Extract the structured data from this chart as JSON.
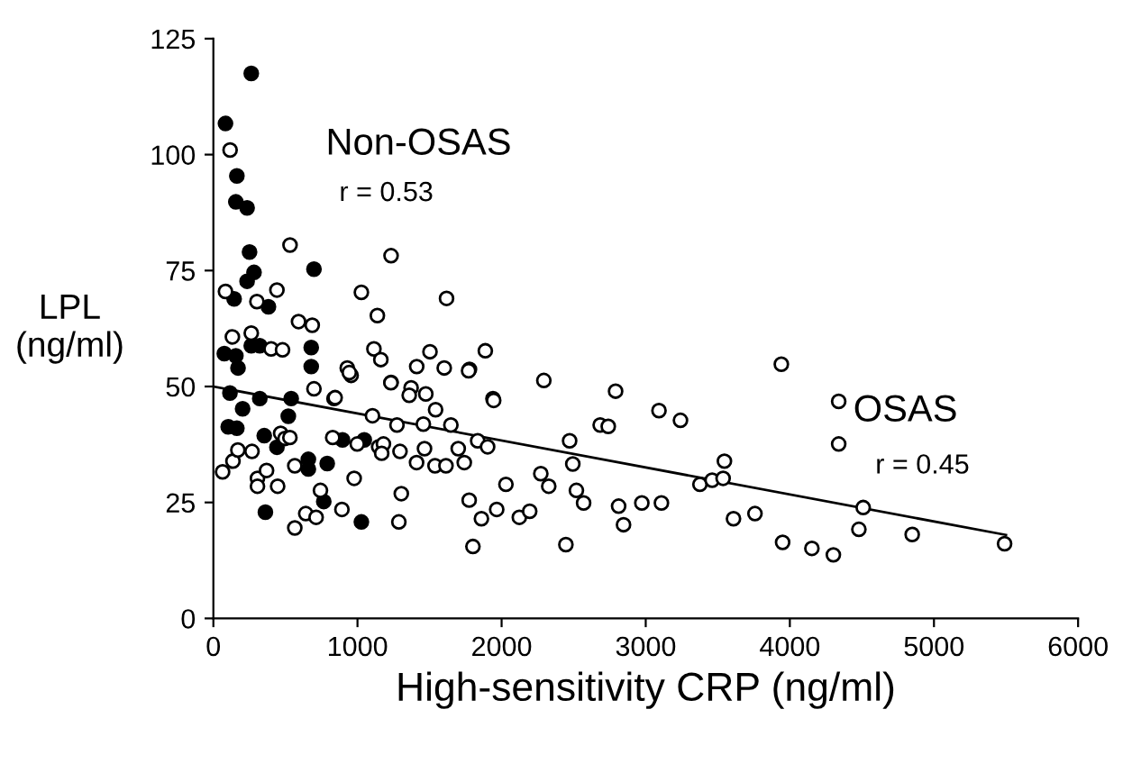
{
  "chart_data": {
    "type": "scatter",
    "xlabel": "High-sensitivity CRP (ng/ml)",
    "ylabel": "LPL (ng/ml)",
    "xlim": [
      0,
      6000
    ],
    "ylim": [
      0,
      125
    ],
    "xticks": [
      0,
      1000,
      2000,
      3000,
      4000,
      5000,
      6000
    ],
    "yticks": [
      0,
      25,
      50,
      75,
      100,
      125
    ],
    "marker": "circle",
    "grid": false,
    "legend": false,
    "annotations": [
      "r = 0.53",
      "r = 0.45"
    ],
    "series": [
      {
        "name": "Non-OSAS",
        "color": "#000000",
        "x": [
          84,
          263,
          163,
          156,
          234,
          251,
          282,
          234,
          144,
          382,
          698,
          263,
          322,
          679,
          679,
          76,
          156,
          171,
          115,
          203,
          322,
          540,
          520,
          353,
          103,
          163,
          441,
          659,
          659,
          790,
          896,
          1047,
          361,
          766,
          1027
        ],
        "values": [
          106.7,
          117.5,
          95.4,
          89.8,
          88.5,
          79,
          74.6,
          72.7,
          68.9,
          67.2,
          75.3,
          58.8,
          58.8,
          58.4,
          54.3,
          57.1,
          56.6,
          54,
          48.6,
          45.2,
          47.4,
          47.4,
          43.6,
          39.4,
          41.3,
          41,
          36.9,
          34.3,
          32.2,
          33.4,
          38.5,
          38.5,
          22.9,
          25.2,
          20.8
        ]
      },
      {
        "name": "OSAS",
        "color": "#ffffff",
        "x": [
          116,
          532,
          1233,
          1027,
          1138,
          1618,
          441,
          302,
          591,
          686,
          84,
          132,
          263,
          1114,
          1162,
          929,
          956,
          1233,
          1411,
          1503,
          1602,
          1777,
          1887,
          1940,
          1372,
          401,
          480,
          837,
          698,
          64,
          136,
          170,
          268,
          306,
          306,
          369,
          446,
          467,
          497,
          531,
          565,
          565,
          641,
          713,
          743,
          845,
          828,
          892,
          943,
          977,
          998,
          1104,
          1147,
          1180,
          1168,
          1232,
          1274,
          1295,
          1287,
          1304,
          1359,
          1410,
          1457,
          1465,
          1474,
          1542,
          1538,
          1614,
          1648,
          1699,
          1741,
          1771,
          1775,
          1801,
          1834,
          1860,
          1903,
          1945,
          1966,
          2030,
          2123,
          2195,
          2272,
          2293,
          2327,
          2446,
          2472,
          2494,
          2519,
          2569,
          2684,
          2740,
          2791,
          2812,
          2846,
          2973,
          3092,
          3109,
          3241,
          3376,
          3461,
          3537,
          3546,
          3609,
          3758,
          3941,
          3950,
          4153,
          4302,
          4339,
          4339,
          4479,
          4509,
          4849,
          5490
        ],
        "values": [
          101,
          80.5,
          78.2,
          70.3,
          65.3,
          69,
          70.8,
          68.3,
          64,
          63.2,
          70.5,
          60.7,
          61.5,
          58.1,
          55.8,
          54,
          52.4,
          50.9,
          54.3,
          57.5,
          54,
          53.7,
          57.7,
          47.4,
          49.7,
          58.1,
          57.9,
          47.4,
          49.5,
          31.6,
          33.9,
          36.3,
          36,
          30.2,
          28.5,
          31.9,
          28.5,
          39.9,
          38.8,
          39,
          32.9,
          19.5,
          22.6,
          21.8,
          27.6,
          47.6,
          39,
          23.5,
          53,
          30.2,
          37.6,
          43.7,
          37,
          37.6,
          35.6,
          50.8,
          41.7,
          36,
          20.8,
          26.9,
          48.1,
          33.6,
          41.9,
          36.6,
          48.4,
          45,
          32.9,
          32.9,
          41.7,
          36.6,
          33.6,
          53.4,
          25.5,
          15.5,
          38.3,
          21.5,
          37,
          47,
          23.5,
          28.9,
          21.8,
          23.1,
          31.2,
          51.3,
          28.5,
          15.9,
          38.3,
          33.3,
          27.6,
          24.9,
          41.7,
          41.4,
          49,
          24.2,
          20.2,
          24.9,
          44.8,
          24.9,
          42.7,
          28.9,
          29.8,
          30.2,
          33.9,
          21.5,
          22.6,
          54.8,
          16.4,
          15.1,
          13.7,
          46.8,
          37.6,
          19.2,
          23.9,
          18.1,
          16.1
        ]
      },
      {
        "type": "line",
        "marker": "none",
        "color": "#000000",
        "x": [
          0,
          5500
        ],
        "values": [
          50,
          18
        ]
      }
    ]
  }
}
